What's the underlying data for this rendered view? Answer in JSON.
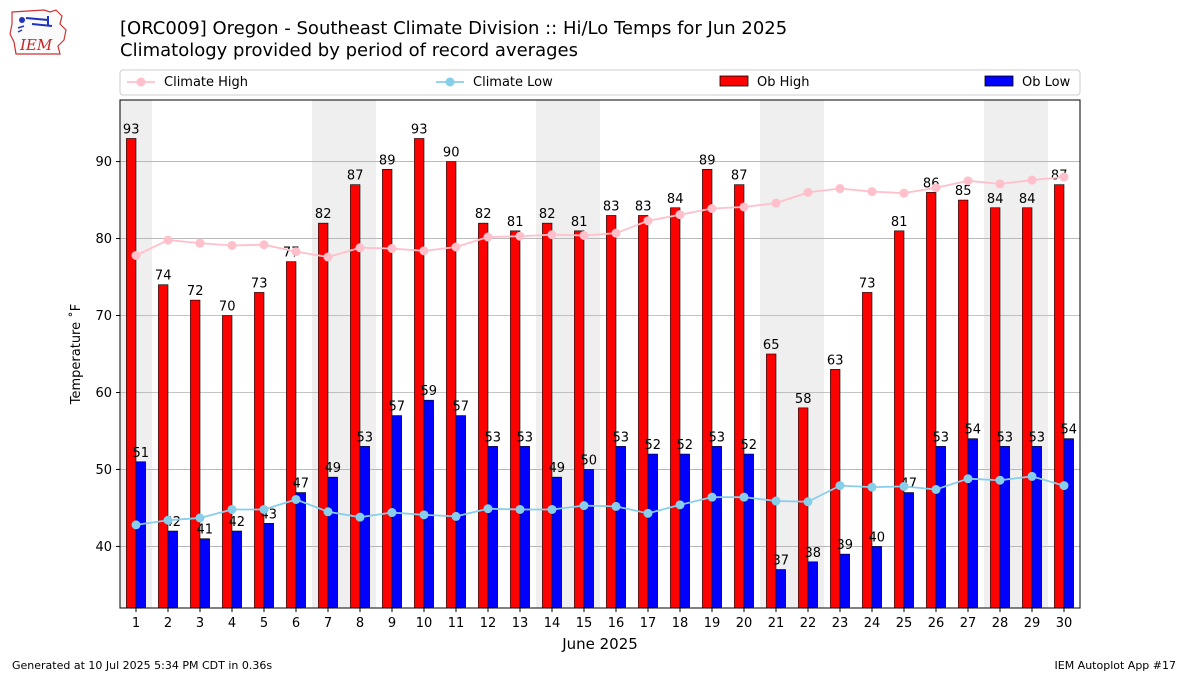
{
  "title": "[ORC009] Oregon - Southeast Climate Division :: Hi/Lo Temps for Jun 2025",
  "subtitle": "Climatology provided by period of record averages",
  "logo_text": "IEM",
  "footer_left": "Generated at 10 Jul 2025 5:34 PM CDT in 0.36s",
  "footer_right": "IEM Autoplot App #17",
  "colors": {
    "ob_high": "#ff0000",
    "ob_low": "#0000ff",
    "climate_high": "#ffc0cb",
    "climate_low": "#87ceeb",
    "weekend_band": "#efefef",
    "grid": "#b0b0b0"
  },
  "chart_data": {
    "type": "bar",
    "xlabel": "June 2025",
    "ylabel": "Temperature ˚F",
    "ylim": [
      32,
      98
    ],
    "yticks": [
      40,
      50,
      60,
      70,
      80,
      90
    ],
    "grid": "horizontal",
    "legend_position": "top",
    "categories": [
      "1",
      "2",
      "3",
      "4",
      "5",
      "6",
      "7",
      "8",
      "9",
      "10",
      "11",
      "12",
      "13",
      "14",
      "15",
      "16",
      "17",
      "18",
      "19",
      "20",
      "21",
      "22",
      "23",
      "24",
      "25",
      "26",
      "27",
      "28",
      "29",
      "30"
    ],
    "weekend_bands": [
      [
        1,
        1
      ],
      [
        7,
        8
      ],
      [
        14,
        15
      ],
      [
        21,
        22
      ],
      [
        28,
        29
      ]
    ],
    "series": [
      {
        "name": "Climate High",
        "kind": "line",
        "values": [
          77.8,
          79.8,
          79.4,
          79.1,
          79.2,
          78.3,
          77.6,
          78.8,
          78.7,
          78.4,
          78.9,
          80.2,
          80.3,
          80.5,
          80.4,
          80.7,
          82.3,
          83.1,
          83.9,
          84.1,
          84.6,
          86.0,
          86.5,
          86.1,
          85.9,
          86.6,
          87.5,
          87.1,
          87.6,
          88.0
        ]
      },
      {
        "name": "Climate Low",
        "kind": "line",
        "values": [
          42.8,
          43.4,
          43.7,
          44.8,
          44.8,
          46.1,
          44.5,
          43.8,
          44.4,
          44.1,
          43.9,
          44.9,
          44.8,
          44.8,
          45.3,
          45.2,
          44.3,
          45.4,
          46.4,
          46.4,
          45.9,
          45.8,
          47.9,
          47.7,
          47.8,
          47.4,
          48.8,
          48.6,
          49.1,
          47.9
        ]
      },
      {
        "name": "Ob High",
        "kind": "bar",
        "values": [
          93,
          74,
          72,
          70,
          73,
          77,
          82,
          87,
          89,
          93,
          90,
          82,
          81,
          82,
          81,
          83,
          83,
          84,
          89,
          87,
          65,
          58,
          63,
          73,
          81,
          86,
          85,
          84,
          84,
          87
        ]
      },
      {
        "name": "Ob Low",
        "kind": "bar",
        "values": [
          51,
          42,
          41,
          42,
          43,
          47,
          49,
          53,
          57,
          59,
          57,
          53,
          53,
          49,
          50,
          53,
          52,
          52,
          53,
          52,
          37,
          38,
          39,
          40,
          47,
          53,
          54,
          53,
          53,
          54
        ]
      }
    ]
  }
}
